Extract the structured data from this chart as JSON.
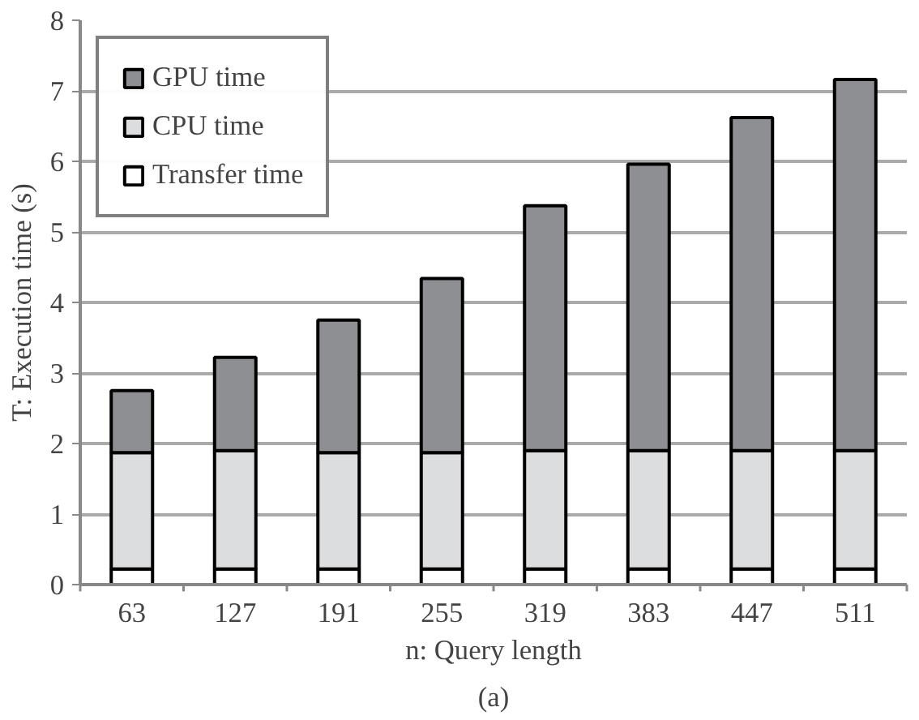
{
  "chart_data": {
    "type": "bar",
    "stacked": true,
    "xlabel": "n: Query length",
    "ylabel": "T: Execution time (s)",
    "categories": [
      "63",
      "127",
      "191",
      "255",
      "319",
      "383",
      "447",
      "511"
    ],
    "series": [
      {
        "name": "Transfer time",
        "color": "#ffffff",
        "values": [
          0.22,
          0.22,
          0.22,
          0.22,
          0.22,
          0.22,
          0.22,
          0.22
        ]
      },
      {
        "name": "CPU time",
        "color": "#dcdddf",
        "values": [
          1.65,
          1.68,
          1.65,
          1.65,
          1.68,
          1.68,
          1.68,
          1.68
        ]
      },
      {
        "name": "GPU time",
        "color": "#8e8f93",
        "values": [
          0.88,
          1.32,
          1.88,
          2.47,
          3.47,
          4.06,
          4.72,
          5.26
        ]
      }
    ],
    "ylim": [
      0,
      8
    ],
    "yticks": [
      0,
      1,
      2,
      3,
      4,
      5,
      6,
      7,
      8
    ],
    "grid": "y",
    "legend": "top left",
    "annotations": [
      "(a)"
    ]
  }
}
